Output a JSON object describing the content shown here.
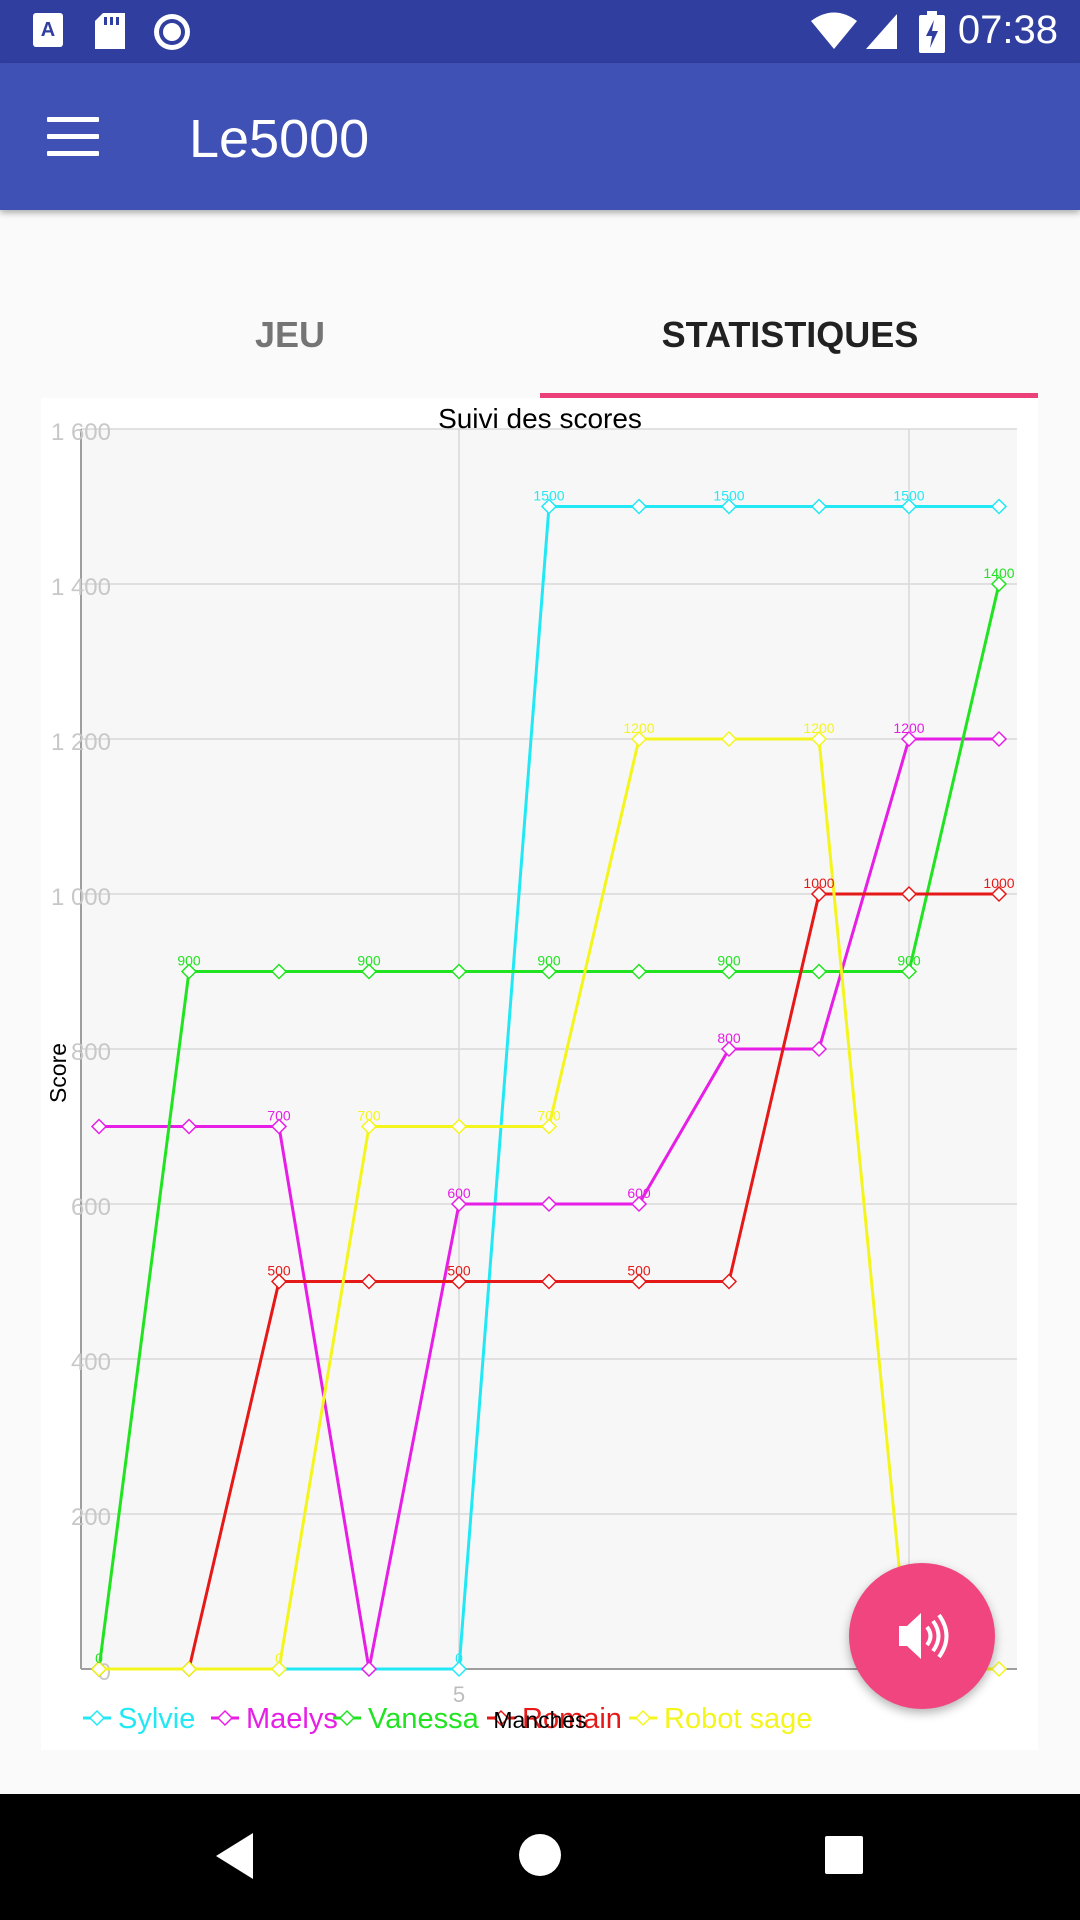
{
  "status_bar": {
    "time": "07:38",
    "left_icons": [
      "a-notification-icon",
      "sd-card-icon",
      "radio-icon"
    ],
    "right_icons": [
      "wifi-icon",
      "signal-icon",
      "battery-charging-icon"
    ]
  },
  "app_bar": {
    "title": "Le5000",
    "menu_icon": "hamburger-menu-icon",
    "color": "#3f51b5",
    "status_color": "#303f9f"
  },
  "tabs": [
    {
      "label": "JEU",
      "selected": false
    },
    {
      "label": "STATISTIQUES",
      "selected": true
    }
  ],
  "accent_color": "#ec407a",
  "chart_data": {
    "type": "line",
    "title": "Suivi des scores",
    "xlabel": "Manches",
    "ylabel": "Score",
    "x_ticks": [
      "5"
    ],
    "y_ticks": [
      "0",
      "200",
      "400",
      "600",
      "800",
      "1 000",
      "1 200",
      "1 400",
      "1 600"
    ],
    "ylim": [
      0,
      1600
    ],
    "xlim": [
      0.8,
      11.2
    ],
    "grid": true,
    "legend": "bottom-left",
    "x": [
      1,
      2,
      3,
      4,
      5,
      6,
      7,
      8,
      9,
      10,
      11
    ],
    "series": [
      {
        "name": "Sylvie",
        "color": "#22e8f5",
        "values": [
          0,
          0,
          0,
          0,
          0,
          1500,
          1500,
          1500,
          1500,
          1500,
          1500
        ],
        "labels": [
          "",
          "",
          "",
          "",
          "0",
          "1500",
          "",
          "1500",
          "",
          "1500",
          ""
        ]
      },
      {
        "name": "Maelys",
        "color": "#e61ee6",
        "values": [
          700,
          700,
          700,
          0,
          600,
          600,
          600,
          800,
          800,
          1200,
          1200
        ],
        "labels": [
          "",
          "",
          "700",
          "",
          "600",
          "",
          "600",
          "800",
          "",
          "1200",
          ""
        ]
      },
      {
        "name": "Vanessa",
        "color": "#22e322",
        "values": [
          0,
          900,
          900,
          900,
          900,
          900,
          900,
          900,
          900,
          900,
          1400
        ],
        "labels": [
          "0",
          "900",
          "",
          "900",
          "",
          "900",
          "",
          "900",
          "",
          "900",
          "1400"
        ]
      },
      {
        "name": "Romain",
        "color": "#e61919",
        "values": [
          0,
          0,
          500,
          500,
          500,
          500,
          500,
          500,
          1000,
          1000,
          1000
        ],
        "labels": [
          "",
          "",
          "500",
          "",
          "500",
          "",
          "500",
          "",
          "1000",
          "",
          "1000"
        ]
      },
      {
        "name": "Robot sage",
        "color": "#f5f51e",
        "values": [
          0,
          0,
          0,
          700,
          700,
          700,
          1200,
          1200,
          1200,
          0,
          0
        ],
        "labels": [
          "",
          "",
          "0",
          "700",
          "",
          "700",
          "1200",
          "",
          "1200",
          "",
          ""
        ]
      }
    ]
  },
  "fab": {
    "icon": "speaker-icon"
  },
  "nav_bar": {
    "icons": [
      "back-icon",
      "home-icon",
      "recents-icon"
    ]
  }
}
